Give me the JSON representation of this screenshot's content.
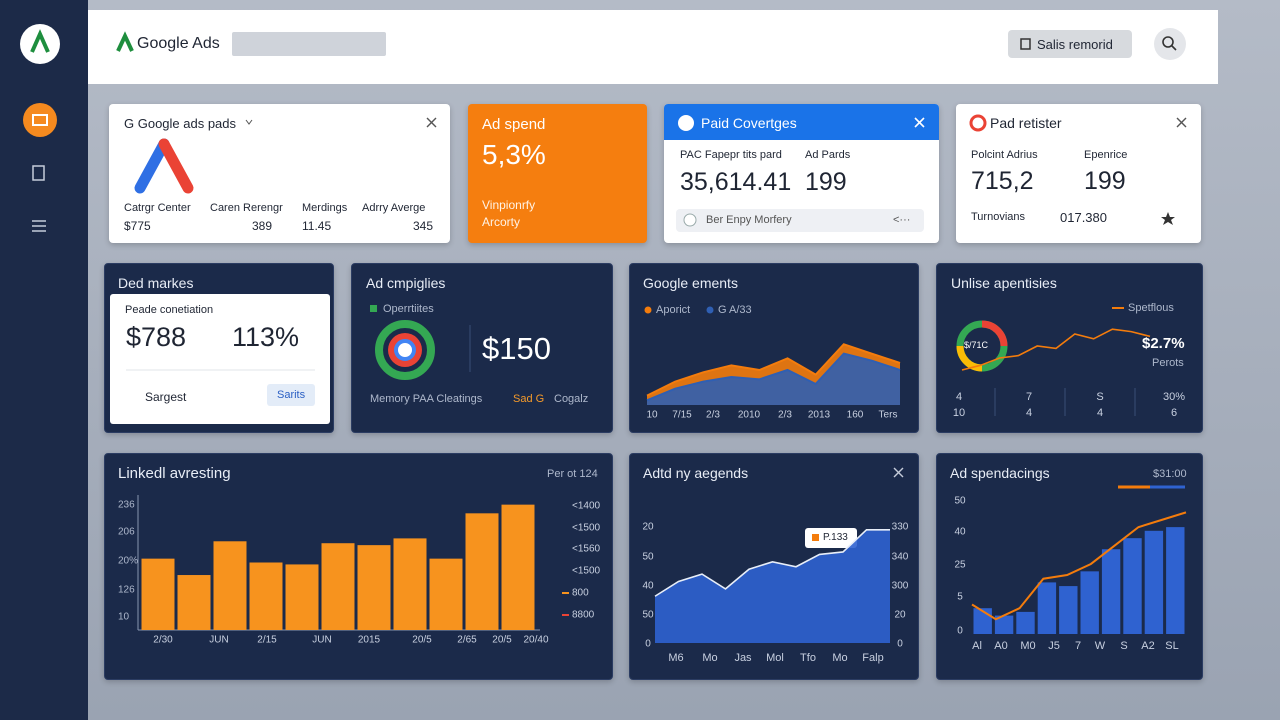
{
  "header": {
    "brand": "Google Ads",
    "button": "Salis remorid"
  },
  "row1": {
    "pads": {
      "title": "G Google ads pads",
      "stats": [
        {
          "label": "Catrgr Center",
          "value": "$775"
        },
        {
          "label": "Caren Rerengr",
          "value": "389"
        },
        {
          "label": "Merdings",
          "value": "11.45"
        },
        {
          "label": "Adrry Averge",
          "value": "345"
        }
      ]
    },
    "spend": {
      "title": "Ad spend",
      "value": "5,3%",
      "line1": "Vinpionrfy",
      "line2": "Arcorty"
    },
    "coverage": {
      "title": "Paid Covertges",
      "label1": "PAC Fapepr tits pard",
      "value1": "35,614.41",
      "label2": "Ad Pards",
      "value2": "199",
      "footer": "Ber Enpy Morfery",
      "footer_right": "<···"
    },
    "register": {
      "title": "Pad retister",
      "label1": "Polcint Adrius",
      "value1": "715,2",
      "label2": "Epenrice",
      "value2": "199",
      "label3": "Turnovians",
      "value3": "017.380"
    }
  },
  "row2": {
    "markes": {
      "title": "Ded markes",
      "subtitle": "Peade conetiation",
      "value1": "$788",
      "value2": "113%",
      "link": "Sargest",
      "button": "Sarits"
    },
    "campaigns": {
      "title": "Ad cmpiglies",
      "legend": "Operrtiites",
      "value": "$150",
      "foot1": "Memory PAA Cleatings",
      "foot2": "Sad G",
      "foot3": "Cogalz"
    },
    "ements": {
      "title": "Google ements",
      "ylim": [
        0,
        60
      ],
      "x_labels": [
        "10",
        "7/15",
        "2/3",
        "2010",
        "2/3",
        "2013",
        "160",
        "Ters"
      ],
      "series": [
        {
          "name": "Aporict",
          "color": "#f47c0c",
          "values": [
            8,
            20,
            28,
            34,
            30,
            40,
            26,
            52,
            44,
            36
          ]
        },
        {
          "name": "G A/33",
          "color": "#2f5fb3",
          "values": [
            4,
            14,
            20,
            24,
            22,
            30,
            18,
            44,
            38,
            30
          ]
        }
      ]
    },
    "unlise": {
      "title": "Unlise apentisies",
      "legend": "Spetflous",
      "donut": "$/71C",
      "value": "$2.7%",
      "value_note": "Perots",
      "color": "#f47c0c",
      "ylim": [
        0,
        50
      ],
      "values": [
        10,
        14,
        20,
        22,
        30,
        28,
        40,
        36,
        44,
        42,
        38
      ],
      "footer": [
        [
          "4",
          "10"
        ],
        [
          "7",
          "4"
        ],
        [
          "S",
          "4"
        ],
        [
          "30%",
          "6"
        ]
      ]
    }
  },
  "row3": {
    "linked": {
      "title": "Linkedl avresting",
      "note": "Per ot 124",
      "color": "#f7931e",
      "ylim": [
        0,
        140
      ],
      "y_left_labels": [
        "236",
        "206",
        "20%",
        "126",
        "10"
      ],
      "y_right_labels": [
        "<1400",
        "<1500",
        "<1560",
        "<1500",
        "800",
        "8800"
      ],
      "x_labels": [
        "2/30",
        "JUN",
        "2/15",
        "JUN",
        "2015",
        "20/5",
        "2/65",
        "20/5",
        "20/40"
      ],
      "values": [
        74,
        57,
        92,
        70,
        68,
        90,
        88,
        95,
        74,
        121,
        130
      ]
    },
    "aegends": {
      "title": "Adtd ny aegends",
      "tooltip": "P.133",
      "color": "#2f62d0",
      "ylim": [
        0,
        100
      ],
      "y_left_labels": [
        "20",
        "50",
        "40",
        "50",
        "0"
      ],
      "y_right_labels": [
        "330",
        "340",
        "300",
        "20",
        "0"
      ],
      "x_labels": [
        "M6",
        "Mo",
        "Jas",
        "Mol",
        "Tfo",
        "Mo",
        "Falp"
      ],
      "values": [
        38,
        50,
        56,
        44,
        60,
        66,
        62,
        72,
        74,
        92,
        92
      ]
    },
    "spendings": {
      "title": "Ad spendacings",
      "note": "$31:00",
      "bar_color": "#2f62d0",
      "line_color": "#f47c0c",
      "ylim": [
        0,
        70
      ],
      "y_labels": [
        "50",
        "40",
        "25",
        "5",
        "0"
      ],
      "x_labels": [
        "Al",
        "A0",
        "M0",
        "J5",
        "7",
        "W",
        "S",
        "A2",
        "SL"
      ],
      "bars": [
        14,
        10,
        12,
        28,
        26,
        34,
        46,
        52,
        56,
        58
      ],
      "line": [
        16,
        8,
        14,
        30,
        32,
        38,
        48,
        58,
        62,
        66
      ]
    }
  }
}
